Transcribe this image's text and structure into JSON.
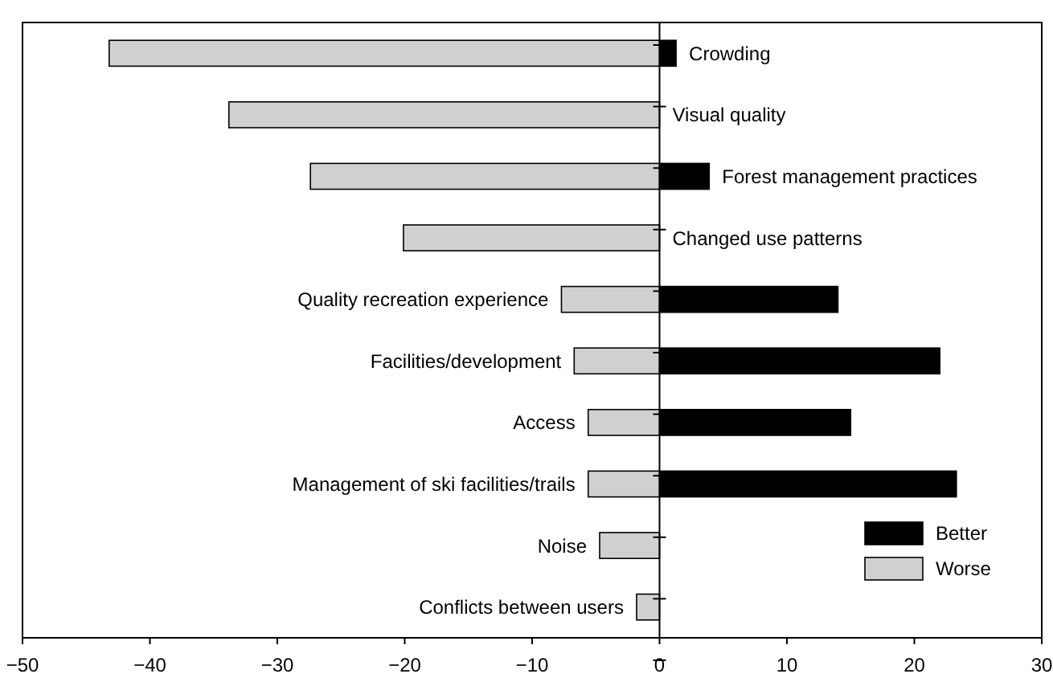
{
  "chart_data": {
    "type": "bar",
    "orientation": "horizontal",
    "stacked": true,
    "categories": [
      "Crowding",
      "Visual quality",
      "Forest management practices",
      "Changed use patterns",
      "Quality recreation experience",
      "Facilities/development",
      "Access",
      "Management of ski facilities/trails",
      "Noise",
      "Conflicts between users"
    ],
    "series": [
      {
        "name": "Better",
        "color": "#000000",
        "values": [
          1.3,
          null,
          3.9,
          null,
          14,
          22,
          15,
          23.3,
          null,
          null
        ]
      },
      {
        "name": "Worse",
        "color": "#d0d0d0",
        "values": [
          -43.2,
          -33.8,
          -27.4,
          -20.1,
          -7.7,
          -6.7,
          -5.6,
          -5.6,
          -4.7,
          -1.8
        ]
      }
    ],
    "xlim": [
      -50,
      30
    ],
    "xticks": [
      -50,
      -40,
      -30,
      -20,
      -10,
      0,
      10,
      20,
      30
    ],
    "legend": "bottom right",
    "grid": false
  }
}
